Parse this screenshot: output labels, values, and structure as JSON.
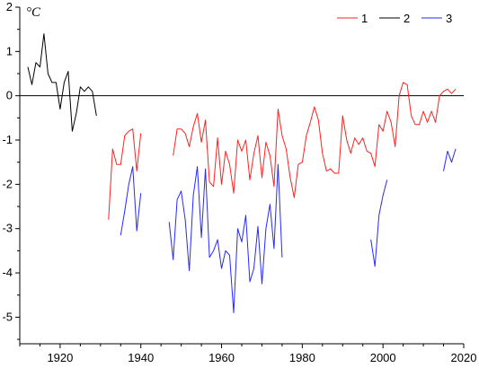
{
  "chart_data": {
    "type": "line",
    "title": "",
    "xlabel": "",
    "ylabel": "",
    "unit_label": "°C",
    "xlim": [
      1910,
      2020
    ],
    "ylim": [
      -5.6,
      2
    ],
    "x_ticks": [
      1920,
      1940,
      1960,
      1980,
      2000,
      2020
    ],
    "y_ticks": [
      2,
      1,
      0,
      -1,
      -2,
      -3,
      -4,
      -5
    ],
    "zero_line": true,
    "grid": false,
    "legend_position": "top-right",
    "series": [
      {
        "name": "1",
        "color": "#ff2020",
        "segments": [
          [
            [
              1932,
              -2.8
            ],
            [
              1933,
              -1.2
            ],
            [
              1934,
              -1.55
            ],
            [
              1935,
              -1.55
            ],
            [
              1936,
              -0.9
            ],
            [
              1937,
              -0.8
            ],
            [
              1938,
              -0.75
            ],
            [
              1939,
              -1.7
            ],
            [
              1940,
              -0.85
            ]
          ],
          [
            [
              1948,
              -1.35
            ],
            [
              1949,
              -0.75
            ],
            [
              1950,
              -0.75
            ],
            [
              1951,
              -0.85
            ],
            [
              1952,
              -1.15
            ],
            [
              1953,
              -0.7
            ],
            [
              1954,
              -0.4
            ],
            [
              1955,
              -1.05
            ],
            [
              1956,
              -0.55
            ],
            [
              1957,
              -1.95
            ],
            [
              1958,
              -2.05
            ],
            [
              1959,
              -0.95
            ],
            [
              1960,
              -2.0
            ],
            [
              1961,
              -1.25
            ],
            [
              1962,
              -1.55
            ],
            [
              1963,
              -2.2
            ],
            [
              1964,
              -1.0
            ],
            [
              1965,
              -1.25
            ],
            [
              1966,
              -1.0
            ],
            [
              1967,
              -1.9
            ],
            [
              1968,
              -1.3
            ],
            [
              1969,
              -0.9
            ],
            [
              1970,
              -1.85
            ],
            [
              1971,
              -1.05
            ],
            [
              1972,
              -1.35
            ],
            [
              1973,
              -2.05
            ],
            [
              1974,
              -0.3
            ],
            [
              1975,
              -0.9
            ],
            [
              1976,
              -1.2
            ],
            [
              1977,
              -1.85
            ],
            [
              1978,
              -2.3
            ],
            [
              1979,
              -1.55
            ],
            [
              1980,
              -1.5
            ],
            [
              1981,
              -0.9
            ],
            [
              1982,
              -0.6
            ],
            [
              1983,
              -0.25
            ],
            [
              1984,
              -0.55
            ],
            [
              1985,
              -1.3
            ],
            [
              1986,
              -1.7
            ],
            [
              1987,
              -1.65
            ],
            [
              1988,
              -1.75
            ],
            [
              1989,
              -1.75
            ],
            [
              1990,
              -0.45
            ],
            [
              1991,
              -1.0
            ],
            [
              1992,
              -1.3
            ],
            [
              1993,
              -0.95
            ],
            [
              1994,
              -1.1
            ],
            [
              1995,
              -0.95
            ],
            [
              1996,
              -1.25
            ],
            [
              1997,
              -1.3
            ],
            [
              1998,
              -1.6
            ],
            [
              1999,
              -0.65
            ],
            [
              2000,
              -0.8
            ],
            [
              2001,
              -0.35
            ],
            [
              2002,
              -0.6
            ],
            [
              2003,
              -1.15
            ],
            [
              2004,
              0.0
            ],
            [
              2005,
              0.3
            ],
            [
              2006,
              0.25
            ],
            [
              2007,
              -0.45
            ],
            [
              2008,
              -0.65
            ],
            [
              2009,
              -0.65
            ],
            [
              2010,
              -0.35
            ],
            [
              2011,
              -0.6
            ],
            [
              2012,
              -0.35
            ],
            [
              2013,
              -0.6
            ],
            [
              2014,
              0.0
            ],
            [
              2015,
              0.1
            ],
            [
              2016,
              0.15
            ],
            [
              2017,
              0.05
            ],
            [
              2018,
              0.15
            ]
          ]
        ]
      },
      {
        "name": "2",
        "color": "#000000",
        "segments": [
          [
            [
              1912,
              0.65
            ],
            [
              1913,
              0.25
            ],
            [
              1914,
              0.75
            ],
            [
              1915,
              0.65
            ],
            [
              1916,
              1.4
            ],
            [
              1917,
              0.5
            ],
            [
              1918,
              0.3
            ],
            [
              1919,
              0.3
            ],
            [
              1920,
              -0.3
            ],
            [
              1921,
              0.3
            ],
            [
              1922,
              0.55
            ],
            [
              1923,
              -0.8
            ],
            [
              1924,
              -0.4
            ],
            [
              1925,
              0.2
            ],
            [
              1926,
              0.1
            ],
            [
              1927,
              0.2
            ],
            [
              1928,
              0.1
            ],
            [
              1929,
              -0.45
            ]
          ]
        ]
      },
      {
        "name": "3",
        "color": "#2828ff",
        "segments": [
          [
            [
              1935,
              -3.15
            ],
            [
              1936,
              -2.6
            ],
            [
              1937,
              -2.0
            ],
            [
              1938,
              -1.6
            ],
            [
              1939,
              -3.05
            ],
            [
              1940,
              -2.2
            ]
          ],
          [
            [
              1947,
              -2.85
            ],
            [
              1948,
              -3.7
            ],
            [
              1949,
              -2.35
            ],
            [
              1950,
              -2.15
            ],
            [
              1951,
              -2.8
            ],
            [
              1952,
              -3.95
            ],
            [
              1953,
              -2.25
            ],
            [
              1954,
              -1.6
            ],
            [
              1955,
              -3.2
            ],
            [
              1956,
              -1.65
            ],
            [
              1957,
              -3.65
            ],
            [
              1958,
              -3.5
            ],
            [
              1959,
              -3.25
            ],
            [
              1960,
              -3.9
            ],
            [
              1961,
              -3.5
            ],
            [
              1962,
              -3.6
            ],
            [
              1963,
              -4.9
            ],
            [
              1964,
              -3.0
            ],
            [
              1965,
              -3.3
            ],
            [
              1966,
              -2.7
            ],
            [
              1967,
              -4.2
            ],
            [
              1968,
              -3.9
            ],
            [
              1969,
              -2.95
            ],
            [
              1970,
              -4.25
            ],
            [
              1971,
              -3.0
            ],
            [
              1972,
              -2.45
            ],
            [
              1973,
              -3.45
            ],
            [
              1974,
              -1.55
            ],
            [
              1975,
              -3.65
            ]
          ],
          [
            [
              1997,
              -3.25
            ],
            [
              1998,
              -3.85
            ],
            [
              1999,
              -2.7
            ],
            [
              2000,
              -2.25
            ],
            [
              2001,
              -1.9
            ]
          ],
          [
            [
              2015,
              -1.7
            ],
            [
              2016,
              -1.25
            ],
            [
              2017,
              -1.5
            ],
            [
              2018,
              -1.2
            ]
          ]
        ]
      }
    ]
  }
}
